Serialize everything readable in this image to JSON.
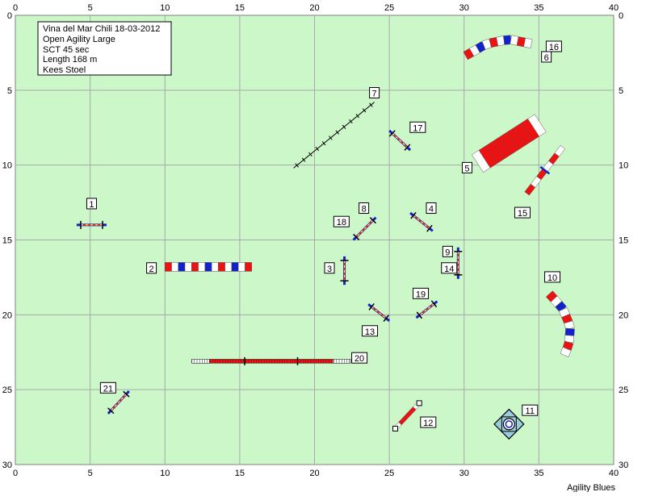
{
  "course": {
    "info_lines": [
      "Vina del Mar Chili 18-03-2012",
      "Open Agility Large",
      "SCT 45 sec",
      "Length 168 m",
      "Kees Stoel"
    ],
    "credit": "Agility Blues"
  },
  "axes": {
    "x_range": [
      0,
      40
    ],
    "y_range": [
      0,
      30
    ],
    "x_ticks": [
      "0",
      "5",
      "10",
      "15",
      "20",
      "25",
      "30",
      "35",
      "40"
    ],
    "y_ticks": [
      "0",
      "5",
      "10",
      "15",
      "20",
      "25",
      "30"
    ],
    "grid": true
  },
  "colors": {
    "field": "#ccf7c8",
    "grid": "#a8a8a8",
    "red": "#ee1111",
    "blue": "#1122cc",
    "white": "#ffffff",
    "pole": "#cc3300",
    "label_bg": "#ffffff"
  },
  "obstacles": [
    {
      "id": "jump-1",
      "type": "jump",
      "x1": 4.1,
      "y1": 14.0,
      "x2": 6.1,
      "y2": 14.0
    },
    {
      "id": "jump-3",
      "type": "jump",
      "x1": 22.0,
      "y1": 16.1,
      "x2": 22.0,
      "y2": 18.0
    },
    {
      "id": "jump-4",
      "type": "jump",
      "x1": 26.4,
      "y1": 13.2,
      "x2": 27.9,
      "y2": 14.4
    },
    {
      "id": "jump-8",
      "type": "jump",
      "x1": 24.1,
      "y1": 13.5,
      "x2": 22.6,
      "y2": 15.0
    },
    {
      "id": "jump-9",
      "type": "jump",
      "x1": 29.6,
      "y1": 15.5,
      "x2": 29.6,
      "y2": 17.6
    },
    {
      "id": "jump-13",
      "type": "jump",
      "x1": 23.6,
      "y1": 19.3,
      "x2": 25.0,
      "y2": 20.4
    },
    {
      "id": "jump-17",
      "type": "jump",
      "x1": 25.0,
      "y1": 7.7,
      "x2": 26.4,
      "y2": 9.0
    },
    {
      "id": "jump-19",
      "type": "jump",
      "x1": 28.2,
      "y1": 19.1,
      "x2": 26.8,
      "y2": 20.2
    },
    {
      "id": "jump-21",
      "type": "jump",
      "x1": 7.6,
      "y1": 25.1,
      "x2": 6.2,
      "y2": 26.6
    },
    {
      "id": "jump-15",
      "type": "wall",
      "x1": 36.6,
      "y1": 8.8,
      "x2": 34.2,
      "y2": 11.9
    },
    {
      "id": "tire-5",
      "type": "tire_jump",
      "x1": 35.1,
      "y1": 7.2,
      "x2": 30.9,
      "y2": 9.9
    },
    {
      "id": "weave-7",
      "type": "weave",
      "x1": 18.6,
      "y1": 10.2,
      "x2": 24.0,
      "y2": 5.8,
      "poles": 12
    },
    {
      "id": "dogwalk-20",
      "type": "dogwalk",
      "x1": 11.8,
      "y1": 23.1,
      "x2": 22.4,
      "y2": 23.1
    },
    {
      "id": "long-jump-12",
      "type": "long_jump",
      "x1": 27.0,
      "y1": 25.9,
      "x2": 25.4,
      "y2": 27.6
    },
    {
      "id": "table-11",
      "type": "table",
      "x": 33.0,
      "y": 27.3
    },
    {
      "id": "tunnel-2",
      "type": "tunnel",
      "points": [
        [
          10,
          16.8
        ],
        [
          15.8,
          16.8
        ]
      ]
    },
    {
      "id": "tunnel-6",
      "type": "tunnel",
      "points": [
        [
          30.1,
          2.7
        ],
        [
          31.5,
          1.9
        ],
        [
          33.0,
          1.6
        ],
        [
          34.5,
          1.9
        ]
      ]
    },
    {
      "id": "tunnel-10",
      "type": "tunnel",
      "points": [
        [
          35.7,
          18.6
        ],
        [
          36.6,
          19.6
        ],
        [
          37.1,
          20.8
        ],
        [
          37.0,
          22.0
        ],
        [
          36.7,
          22.7
        ]
      ]
    }
  ],
  "labels": [
    {
      "text": "1",
      "x": 5.1,
      "y": 12.6
    },
    {
      "text": "2",
      "x": 9.1,
      "y": 16.9
    },
    {
      "text": "3",
      "x": 21.0,
      "y": 16.9
    },
    {
      "text": "4",
      "x": 27.8,
      "y": 12.9
    },
    {
      "text": "5",
      "x": 30.2,
      "y": 10.2
    },
    {
      "text": "6",
      "x": 35.5,
      "y": 2.8
    },
    {
      "text": "7",
      "x": 24.0,
      "y": 5.2
    },
    {
      "text": "8",
      "x": 23.3,
      "y": 12.9
    },
    {
      "text": "9",
      "x": 28.9,
      "y": 15.8
    },
    {
      "text": "10",
      "x": 35.9,
      "y": 17.5
    },
    {
      "text": "11",
      "x": 34.4,
      "y": 26.4
    },
    {
      "text": "12",
      "x": 27.6,
      "y": 27.2
    },
    {
      "text": "13",
      "x": 23.7,
      "y": 21.1
    },
    {
      "text": "14",
      "x": 29.0,
      "y": 16.9
    },
    {
      "text": "15",
      "x": 33.9,
      "y": 13.2
    },
    {
      "text": "16",
      "x": 36.0,
      "y": 2.1
    },
    {
      "text": "17",
      "x": 26.9,
      "y": 7.5
    },
    {
      "text": "18",
      "x": 21.8,
      "y": 13.8
    },
    {
      "text": "19",
      "x": 27.1,
      "y": 18.6
    },
    {
      "text": "20",
      "x": 23.0,
      "y": 22.9
    },
    {
      "text": "21",
      "x": 6.2,
      "y": 24.9
    }
  ]
}
